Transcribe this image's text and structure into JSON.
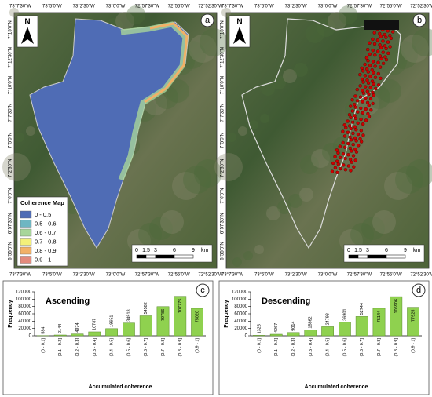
{
  "maps": [
    {
      "panel": "a",
      "north": "N",
      "lon_labels": [
        "73°7'30\"W",
        "73°5'0\"W",
        "73°2'30\"W",
        "73°0'0\"W",
        "72°57'30\"W",
        "72°55'0\"W",
        "72°52'30\"W"
      ],
      "lat_labels": [
        "7°15'0\"N",
        "7°12'30\"N",
        "7°10'0\"N",
        "7°7'30\"N",
        "7°5'0\"N",
        "7°2'30\"N",
        "7°0'0\"N",
        "6°57'30\"N",
        "6°55'0\"N"
      ],
      "legend": {
        "title": "Coherence Map",
        "items": [
          {
            "label": "0 - 0.5",
            "color": "#4f6cb5"
          },
          {
            "label": "0.5 - 0.6",
            "color": "#6fb6c2"
          },
          {
            "label": "0.6 - 0.7",
            "color": "#a8d69a"
          },
          {
            "label": "0.7 - 0.8",
            "color": "#f3f07a"
          },
          {
            "label": "0.8 - 0.9",
            "color": "#f2b167"
          },
          {
            "label": "0.9 - 1",
            "color": "#e38a7c"
          }
        ]
      },
      "scale": [
        "0",
        "1.5",
        "3",
        "6",
        "9",
        "km"
      ]
    },
    {
      "panel": "b",
      "north": "N",
      "lon_labels": [
        "73°7'30\"W",
        "73°5'0\"W",
        "73°2'30\"W",
        "73°0'0\"W",
        "72°57'30\"W",
        "72°55'0\"W",
        "72°52'30\"W"
      ],
      "lat_labels": [
        "7°15'0\"N",
        "7°12'30\"N",
        "7°10'0\"N",
        "7°7'30\"N",
        "7°5'0\"N",
        "7°2'30\"N",
        "7°0'0\"N",
        "6°57'30\"N",
        "6°55'0\"N"
      ],
      "scale": [
        "0",
        "1.5",
        "3",
        "6",
        "9",
        "km"
      ]
    }
  ],
  "chart_data": [
    {
      "type": "bar",
      "panel": "c",
      "title": "Ascending",
      "y_label": "Frequency",
      "x_label": "Accumulated coherence",
      "color": "#8fd14f",
      "categories": [
        "(0 - 0.1]",
        "(0.1 - 0.2]",
        "(0.2 - 0.3]",
        "(0.3 - 0.4]",
        "(0.4 - 0.5]",
        "(0.5 - 0.6]",
        "(0.6 - 0.7]",
        "(0.7 - 0.8]",
        "(0.8 - 0.9]",
        "(0.9 - 1]"
      ],
      "values": [
        584,
        2144,
        4974,
        10787,
        19651,
        34918,
        54582,
        79786,
        107775,
        75020
      ],
      "ylim": [
        0,
        120000
      ],
      "yticks": [
        0,
        20000,
        40000,
        60000,
        80000,
        100000,
        120000
      ]
    },
    {
      "type": "bar",
      "panel": "d",
      "title": "Descending",
      "y_label": "Frequency",
      "x_label": "Accumulated coherence",
      "color": "#8fd14f",
      "categories": [
        "(0 - 0.1]",
        "(0.1 - 0.2]",
        "(0.2 - 0.3]",
        "(0.3 - 0.4]",
        "(0.4 - 0.5]",
        "(0.5 - 0.6]",
        "(0.6 - 0.7]",
        "(0.7 - 0.8]",
        "(0.8 - 0.9]",
        "(0.9 - 1]"
      ],
      "values": [
        1325,
        4267,
        9014,
        15862,
        24793,
        36901,
        52744,
        75144,
        106906,
        77925
      ],
      "ylim": [
        0,
        120000
      ],
      "yticks": [
        0,
        20000,
        40000,
        60000,
        80000,
        100000,
        120000
      ]
    }
  ]
}
